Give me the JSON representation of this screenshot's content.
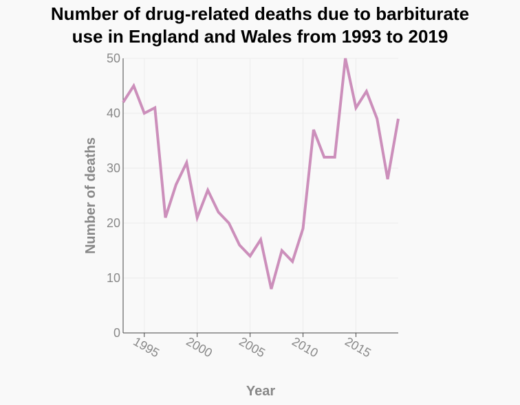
{
  "chart_data": {
    "type": "line",
    "title_lines": [
      "Number of drug-related deaths due to barbiturate",
      "use in England and Wales from 1993 to 2019"
    ],
    "xlabel": "Year",
    "ylabel": "Number of deaths",
    "xlim": [
      1993,
      2019
    ],
    "ylim": [
      0,
      50
    ],
    "x_ticks": [
      1995,
      2000,
      2005,
      2010,
      2015
    ],
    "y_ticks": [
      0,
      10,
      20,
      30,
      40,
      50
    ],
    "grid": true,
    "series": [
      {
        "color": "#cc8fbb",
        "points": [
          {
            "x": 1993,
            "y": 42
          },
          {
            "x": 1994,
            "y": 45
          },
          {
            "x": 1995,
            "y": 40
          },
          {
            "x": 1996,
            "y": 41
          },
          {
            "x": 1997,
            "y": 21
          },
          {
            "x": 1998,
            "y": 27
          },
          {
            "x": 1999,
            "y": 31
          },
          {
            "x": 2000,
            "y": 21
          },
          {
            "x": 2001,
            "y": 26
          },
          {
            "x": 2002,
            "y": 22
          },
          {
            "x": 2003,
            "y": 20
          },
          {
            "x": 2004,
            "y": 16
          },
          {
            "x": 2005,
            "y": 14
          },
          {
            "x": 2006,
            "y": 17
          },
          {
            "x": 2007,
            "y": 8
          },
          {
            "x": 2008,
            "y": 15
          },
          {
            "x": 2009,
            "y": 13
          },
          {
            "x": 2010,
            "y": 19
          },
          {
            "x": 2011,
            "y": 37
          },
          {
            "x": 2012,
            "y": 32
          },
          {
            "x": 2013,
            "y": 32
          },
          {
            "x": 2014,
            "y": 50
          },
          {
            "x": 2015,
            "y": 41
          },
          {
            "x": 2016,
            "y": 44
          },
          {
            "x": 2017,
            "y": 39
          },
          {
            "x": 2018,
            "y": 28
          },
          {
            "x": 2019,
            "y": 39
          }
        ]
      }
    ]
  }
}
